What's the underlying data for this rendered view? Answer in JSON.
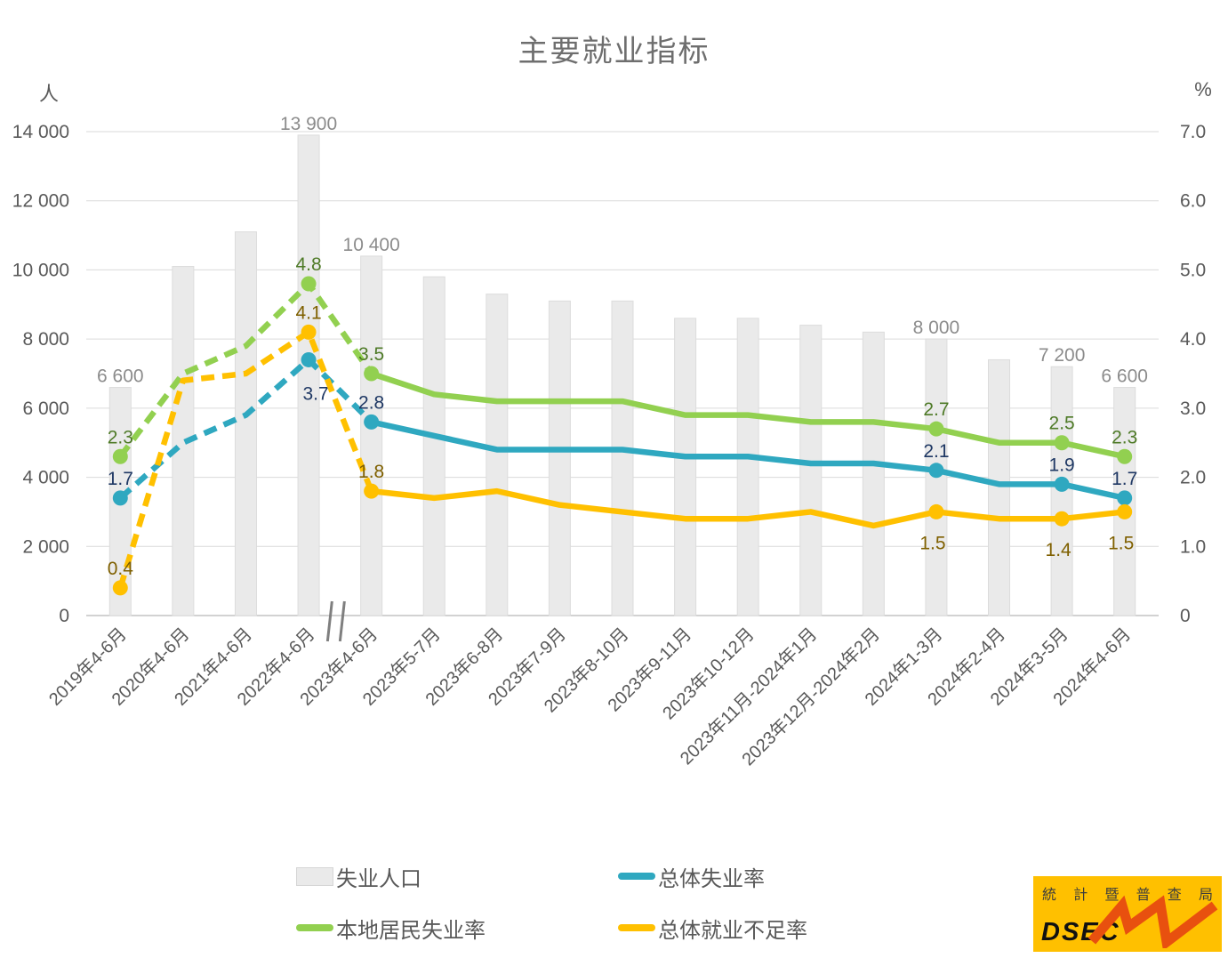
{
  "title": "主要就业指标",
  "left_axis": {
    "unit": "人",
    "ticks": [
      "14 000",
      "12 000",
      "10 000",
      "8 000",
      "6 000",
      "4 000",
      "2 000",
      "0"
    ]
  },
  "right_axis": {
    "unit": "%",
    "ticks": [
      "7.0",
      "6.0",
      "5.0",
      "4.0",
      "3.0",
      "2.0",
      "1.0",
      "0"
    ]
  },
  "chart_data": {
    "type": "bar+line combo",
    "title": "主要就业指标",
    "categories": [
      "2019年4-6月",
      "2020年4-6月",
      "2021年4-6月",
      "2022年4-6月",
      "2023年4-6月",
      "2023年5-7月",
      "2023年6-8月",
      "2023年7-9月",
      "2023年8-10月",
      "2023年9-11月",
      "2023年10-12月",
      "2023年11月-2024年1月",
      "2023年12月-2024年2月",
      "2024年1-3月",
      "2024年2-4月",
      "2024年3-5月",
      "2024年4-6月"
    ],
    "ylim_left": [
      0,
      14000
    ],
    "ylim_right": [
      0,
      7
    ],
    "grid": "horizontal",
    "axis_break_between": [
      "2022年4-6月",
      "2023年4-6月"
    ],
    "dashed_segments": 4,
    "labeled_indices": [
      0,
      3,
      4,
      13,
      15,
      16
    ],
    "bar_series": {
      "name": "失业人口",
      "axis": "left",
      "color": "#eaeaea",
      "border_color": "#dcdcdc",
      "label_color": "#8c8c8c",
      "values": [
        6600,
        10100,
        11100,
        13900,
        10400,
        9800,
        9300,
        9100,
        9100,
        8600,
        8600,
        8400,
        8200,
        8000,
        7400,
        7200,
        6600
      ],
      "labels": {
        "0": "6 600",
        "3": "13 900",
        "4": "10 400",
        "13": "8 000",
        "15": "7 200",
        "16": "6 600"
      }
    },
    "line_series": [
      {
        "key": "overall_unemployment",
        "name": "总体失业率",
        "axis": "right",
        "color": "#2fa8c0",
        "label_color": "#1f3864",
        "values": [
          1.7,
          2.5,
          2.9,
          3.7,
          2.8,
          2.6,
          2.4,
          2.4,
          2.4,
          2.3,
          2.3,
          2.2,
          2.2,
          2.1,
          1.9,
          1.9,
          1.7
        ]
      },
      {
        "key": "local_unemployment",
        "name": "本地居民失业率",
        "axis": "right",
        "color": "#92d050",
        "label_color": "#4e7a27",
        "values": [
          2.3,
          3.5,
          3.9,
          4.8,
          3.5,
          3.2,
          3.1,
          3.1,
          3.1,
          2.9,
          2.9,
          2.8,
          2.8,
          2.7,
          2.5,
          2.5,
          2.3
        ]
      },
      {
        "key": "underemployment",
        "name": "总体就业不足率",
        "axis": "right",
        "color": "#ffc000",
        "label_color": "#7f6000",
        "values": [
          0.4,
          3.4,
          3.5,
          4.1,
          1.8,
          1.7,
          1.8,
          1.6,
          1.5,
          1.4,
          1.4,
          1.5,
          1.3,
          1.5,
          1.4,
          1.4,
          1.5
        ]
      }
    ],
    "colors": {
      "gridline": "#dadada",
      "axis_line": "#c3c3c3",
      "tick_text": "#595959",
      "break_mark": "#7f7f7f"
    }
  },
  "legend": [
    {
      "label": "失业人口",
      "swatch": "bar",
      "color": "#eaeaea"
    },
    {
      "label": "总体失业率",
      "swatch": "line",
      "color": "#2fa8c0"
    },
    {
      "label": "本地居民失业率",
      "swatch": "line",
      "color": "#92d050"
    },
    {
      "label": "总体就业不足率",
      "swatch": "line",
      "color": "#ffc000"
    }
  ],
  "logo": {
    "org": "統計暨普查局",
    "abbr": "DSEC",
    "bg_color": "#ffc000",
    "zigzag_color": "#e8500f"
  }
}
